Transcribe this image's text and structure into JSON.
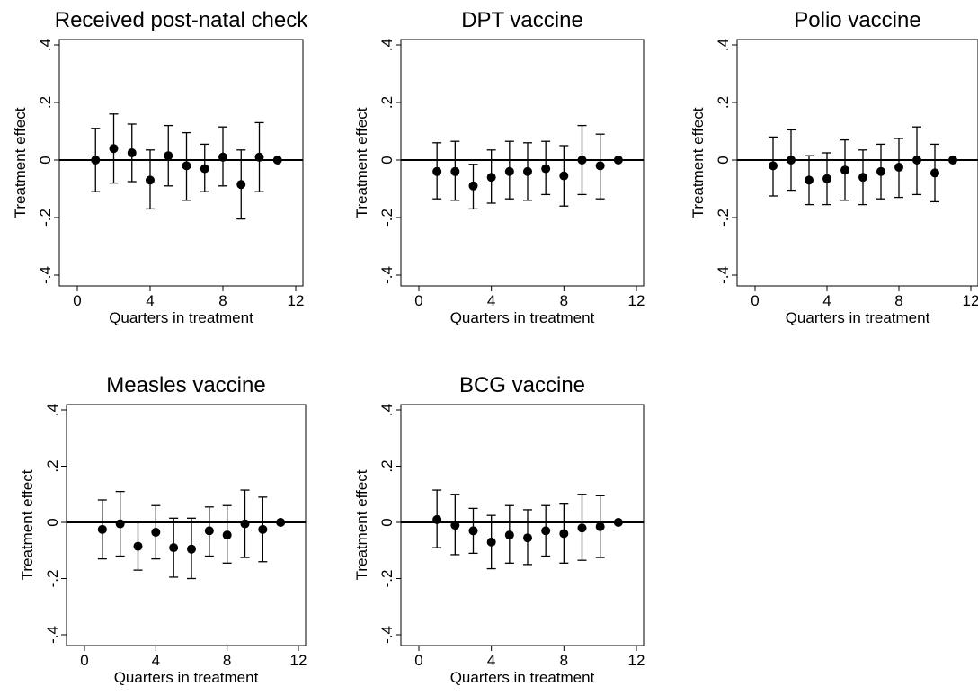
{
  "chart_data": [
    {
      "type": "scatter",
      "title": "Received post-natal check",
      "xlabel": "Quarters in treatment",
      "ylabel": "Treatment effect",
      "xlim": [
        0,
        12
      ],
      "ylim": [
        -0.4,
        0.4
      ],
      "xticks": [
        "0",
        "4",
        "8",
        "12"
      ],
      "yticks": [
        "-.4",
        "-.2",
        "0",
        ".2",
        ".4"
      ],
      "grid": false,
      "reference_line_y": 0,
      "points": [
        {
          "x": 1,
          "y": 0.0,
          "lo": -0.11,
          "hi": 0.11
        },
        {
          "x": 2,
          "y": 0.04,
          "lo": -0.08,
          "hi": 0.16
        },
        {
          "x": 3,
          "y": 0.025,
          "lo": -0.075,
          "hi": 0.125
        },
        {
          "x": 4,
          "y": -0.07,
          "lo": -0.17,
          "hi": 0.035
        },
        {
          "x": 5,
          "y": 0.015,
          "lo": -0.09,
          "hi": 0.12
        },
        {
          "x": 6,
          "y": -0.02,
          "lo": -0.14,
          "hi": 0.095
        },
        {
          "x": 7,
          "y": -0.03,
          "lo": -0.11,
          "hi": 0.055
        },
        {
          "x": 8,
          "y": 0.01,
          "lo": -0.09,
          "hi": 0.115
        },
        {
          "x": 9,
          "y": -0.085,
          "lo": -0.205,
          "hi": 0.035
        },
        {
          "x": 10,
          "y": 0.01,
          "lo": -0.11,
          "hi": 0.13
        },
        {
          "x": 11,
          "y": 0.0,
          "lo": 0.0,
          "hi": 0.0
        }
      ]
    },
    {
      "type": "scatter",
      "title": "DPT vaccine",
      "xlabel": "Quarters in treatment",
      "ylabel": "Treatment effect",
      "xlim": [
        0,
        12
      ],
      "ylim": [
        -0.4,
        0.4
      ],
      "xticks": [
        "0",
        "4",
        "8",
        "12"
      ],
      "yticks": [
        "-.4",
        "-.2",
        "0",
        ".2",
        ".4"
      ],
      "grid": false,
      "reference_line_y": 0,
      "points": [
        {
          "x": 1,
          "y": -0.04,
          "lo": -0.135,
          "hi": 0.06
        },
        {
          "x": 2,
          "y": -0.04,
          "lo": -0.14,
          "hi": 0.065
        },
        {
          "x": 3,
          "y": -0.09,
          "lo": -0.17,
          "hi": -0.015
        },
        {
          "x": 4,
          "y": -0.06,
          "lo": -0.15,
          "hi": 0.035
        },
        {
          "x": 5,
          "y": -0.04,
          "lo": -0.135,
          "hi": 0.065
        },
        {
          "x": 6,
          "y": -0.04,
          "lo": -0.14,
          "hi": 0.06
        },
        {
          "x": 7,
          "y": -0.03,
          "lo": -0.12,
          "hi": 0.065
        },
        {
          "x": 8,
          "y": -0.055,
          "lo": -0.16,
          "hi": 0.05
        },
        {
          "x": 9,
          "y": 0.0,
          "lo": -0.12,
          "hi": 0.12
        },
        {
          "x": 10,
          "y": -0.02,
          "lo": -0.135,
          "hi": 0.09
        },
        {
          "x": 11,
          "y": 0.0,
          "lo": 0.0,
          "hi": 0.0
        }
      ]
    },
    {
      "type": "scatter",
      "title": "Polio vaccine",
      "xlabel": "Quarters in treatment",
      "ylabel": "Treatment effect",
      "xlim": [
        0,
        12
      ],
      "ylim": [
        -0.4,
        0.4
      ],
      "xticks": [
        "0",
        "4",
        "8",
        "12"
      ],
      "yticks": [
        "-.4",
        "-.2",
        "0",
        ".2",
        ".4"
      ],
      "grid": false,
      "reference_line_y": 0,
      "points": [
        {
          "x": 1,
          "y": -0.02,
          "lo": -0.125,
          "hi": 0.08
        },
        {
          "x": 2,
          "y": 0.0,
          "lo": -0.105,
          "hi": 0.105
        },
        {
          "x": 3,
          "y": -0.07,
          "lo": -0.155,
          "hi": 0.015
        },
        {
          "x": 4,
          "y": -0.065,
          "lo": -0.155,
          "hi": 0.025
        },
        {
          "x": 5,
          "y": -0.035,
          "lo": -0.14,
          "hi": 0.07
        },
        {
          "x": 6,
          "y": -0.06,
          "lo": -0.155,
          "hi": 0.035
        },
        {
          "x": 7,
          "y": -0.04,
          "lo": -0.135,
          "hi": 0.055
        },
        {
          "x": 8,
          "y": -0.025,
          "lo": -0.13,
          "hi": 0.075
        },
        {
          "x": 9,
          "y": 0.0,
          "lo": -0.12,
          "hi": 0.115
        },
        {
          "x": 10,
          "y": -0.045,
          "lo": -0.145,
          "hi": 0.055
        },
        {
          "x": 11,
          "y": 0.0,
          "lo": 0.0,
          "hi": 0.0
        }
      ]
    },
    {
      "type": "scatter",
      "title": "Measles vaccine",
      "xlabel": "Quarters in treatment",
      "ylabel": "Treatment effect",
      "xlim": [
        0,
        12
      ],
      "ylim": [
        -0.4,
        0.4
      ],
      "xticks": [
        "0",
        "4",
        "8",
        "12"
      ],
      "yticks": [
        "-.4",
        "-.2",
        "0",
        ".2",
        ".4"
      ],
      "grid": false,
      "reference_line_y": 0,
      "points": [
        {
          "x": 1,
          "y": -0.025,
          "lo": -0.13,
          "hi": 0.08
        },
        {
          "x": 2,
          "y": -0.005,
          "lo": -0.12,
          "hi": 0.11
        },
        {
          "x": 3,
          "y": -0.085,
          "lo": -0.17,
          "hi": 0.0
        },
        {
          "x": 4,
          "y": -0.035,
          "lo": -0.13,
          "hi": 0.06
        },
        {
          "x": 5,
          "y": -0.09,
          "lo": -0.195,
          "hi": 0.015
        },
        {
          "x": 6,
          "y": -0.095,
          "lo": -0.2,
          "hi": 0.015
        },
        {
          "x": 7,
          "y": -0.03,
          "lo": -0.12,
          "hi": 0.055
        },
        {
          "x": 8,
          "y": -0.045,
          "lo": -0.145,
          "hi": 0.06
        },
        {
          "x": 9,
          "y": -0.005,
          "lo": -0.125,
          "hi": 0.115
        },
        {
          "x": 10,
          "y": -0.025,
          "lo": -0.14,
          "hi": 0.09
        },
        {
          "x": 11,
          "y": 0.0,
          "lo": 0.0,
          "hi": 0.0
        }
      ]
    },
    {
      "type": "scatter",
      "title": "BCG vaccine",
      "xlabel": "Quarters in treatment",
      "ylabel": "Treatment effect",
      "xlim": [
        0,
        12
      ],
      "ylim": [
        -0.4,
        0.4
      ],
      "xticks": [
        "0",
        "4",
        "8",
        "12"
      ],
      "yticks": [
        "-.4",
        "-.2",
        "0",
        ".2",
        ".4"
      ],
      "grid": false,
      "reference_line_y": 0,
      "points": [
        {
          "x": 1,
          "y": 0.01,
          "lo": -0.09,
          "hi": 0.115
        },
        {
          "x": 2,
          "y": -0.01,
          "lo": -0.115,
          "hi": 0.1
        },
        {
          "x": 3,
          "y": -0.03,
          "lo": -0.11,
          "hi": 0.05
        },
        {
          "x": 4,
          "y": -0.07,
          "lo": -0.165,
          "hi": 0.025
        },
        {
          "x": 5,
          "y": -0.045,
          "lo": -0.145,
          "hi": 0.06
        },
        {
          "x": 6,
          "y": -0.055,
          "lo": -0.15,
          "hi": 0.045
        },
        {
          "x": 7,
          "y": -0.03,
          "lo": -0.12,
          "hi": 0.06
        },
        {
          "x": 8,
          "y": -0.04,
          "lo": -0.145,
          "hi": 0.065
        },
        {
          "x": 9,
          "y": -0.02,
          "lo": -0.135,
          "hi": 0.1
        },
        {
          "x": 10,
          "y": -0.015,
          "lo": -0.125,
          "hi": 0.095
        },
        {
          "x": 11,
          "y": 0.0,
          "lo": 0.0,
          "hi": 0.0
        }
      ]
    }
  ]
}
